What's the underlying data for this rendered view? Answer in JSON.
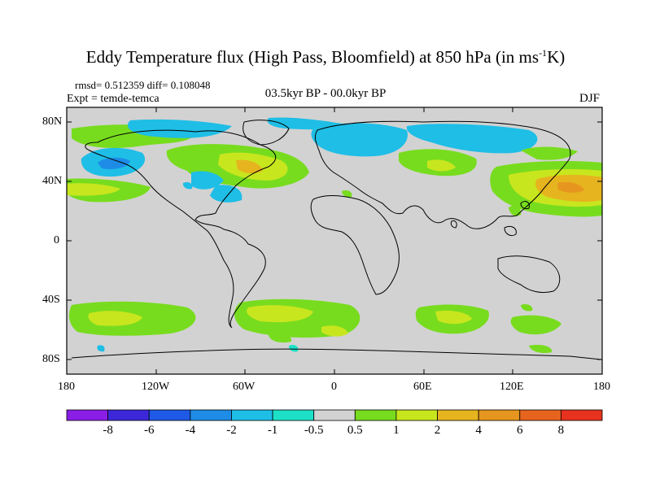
{
  "title": {
    "main": "Eddy Temperature flux (High Pass, Bloomfield) at 850 hPa (in ms",
    "sup": "-1",
    "unit_end": "K)"
  },
  "stats": "rmsd= 0.512359 diff= 0.108048",
  "expt": "Expt = temde-temca",
  "period": "03.5kyr BP - 00.0kyr BP",
  "season": "DJF",
  "lat_labels": [
    "80N",
    "40N",
    "0",
    "40S",
    "80S"
  ],
  "lon_labels": [
    "180",
    "120W",
    "60W",
    "0",
    "60E",
    "120E",
    "180"
  ],
  "colorbar": {
    "colors": [
      "#8b1ee6",
      "#3c28d8",
      "#1e5ae6",
      "#1e8ce6",
      "#1ebee6",
      "#1ee0c8",
      "#d2d2d2",
      "#78dc1e",
      "#c8e61e",
      "#e6b41e",
      "#e6961e",
      "#e6641e",
      "#e6321e"
    ],
    "labels": [
      "-8",
      "-6",
      "-4",
      "-2",
      "-1",
      "-0.5",
      "0.5",
      "1",
      "2",
      "4",
      "6",
      "8"
    ]
  },
  "colors": {
    "background_field": "#d2d2d2",
    "cyan": "#1ee0c8",
    "lightblue": "#1ebee6",
    "green": "#78dc1e",
    "yellowgreen": "#c8e61e",
    "orange": "#e6b41e"
  },
  "map": {
    "lon_range": [
      -180,
      180
    ],
    "lat_range": [
      -90,
      90
    ]
  }
}
